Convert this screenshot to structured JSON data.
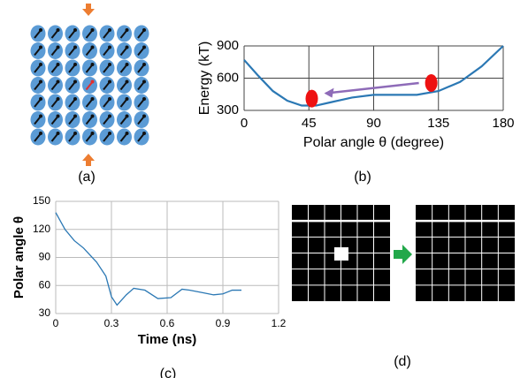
{
  "chart_data": [
    {
      "type": "line",
      "xlabel": "Polar angle θ (degree)",
      "ylabel": "Energy (kT)",
      "x": [
        0,
        10,
        20,
        30,
        40,
        50,
        60,
        75,
        90,
        105,
        120,
        135,
        150,
        165,
        180
      ],
      "series": [
        {
          "color": "#2b78b4",
          "values": [
            770,
            620,
            480,
            390,
            345,
            345,
            375,
            420,
            445,
            445,
            445,
            480,
            565,
            710,
            900
          ]
        }
      ],
      "markers": {
        "x": [
          47,
          130
        ],
        "y": [
          410,
          555
        ],
        "color": "#ee1111"
      },
      "xlim": [
        0,
        180
      ],
      "ylim": [
        300,
        900
      ],
      "xticks": [
        0,
        45,
        90,
        135,
        180
      ],
      "yticks": [
        300,
        600,
        900
      ],
      "grid": true
    },
    {
      "type": "line",
      "xlabel": "Time (ns)",
      "ylabel": "Polar angle θ",
      "x": [
        0,
        0.05,
        0.1,
        0.15,
        0.22,
        0.27,
        0.3,
        0.33,
        0.38,
        0.42,
        0.48,
        0.55,
        0.62,
        0.68,
        0.72,
        0.8,
        0.85,
        0.9,
        0.95,
        1.0
      ],
      "series": [
        {
          "color": "#2b78b4",
          "values": [
            138,
            120,
            108,
            100,
            85,
            70,
            48,
            39,
            50,
            57,
            55,
            46,
            47,
            56,
            55,
            52,
            50,
            51,
            55,
            55
          ]
        }
      ],
      "xlim": [
        0,
        1.2
      ],
      "ylim": [
        30,
        150
      ],
      "xticks": [
        0,
        0.3,
        0.6,
        0.9,
        1.2
      ],
      "yticks": [
        30,
        60,
        90,
        120,
        150
      ],
      "grid": true
    }
  ],
  "panels": {
    "a": "(a)",
    "b": "(b)",
    "c": "(c)",
    "d": "(d)"
  }
}
